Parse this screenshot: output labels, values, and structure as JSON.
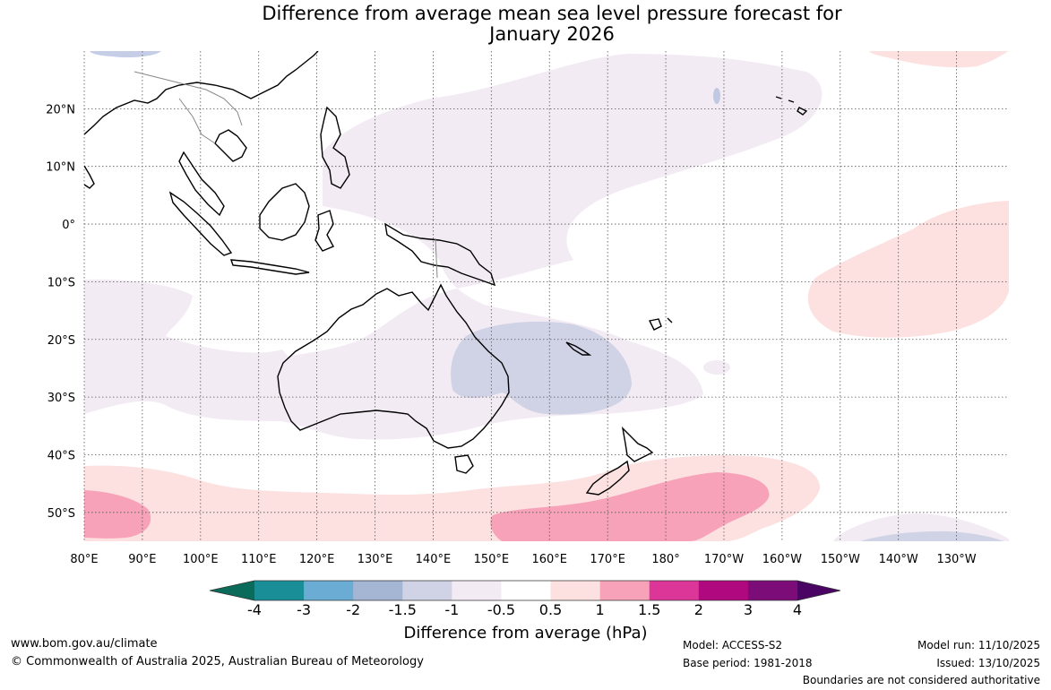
{
  "title": {
    "line1": "Difference from average mean sea level pressure forecast for",
    "line2": "January 2026"
  },
  "map": {
    "longitude_labels": [
      "80°E",
      "90°E",
      "100°E",
      "110°E",
      "120°E",
      "130°E",
      "140°E",
      "150°E",
      "160°E",
      "170°E",
      "180°",
      "170°W",
      "160°W",
      "150°W",
      "140°W",
      "130°W"
    ],
    "latitude_labels": [
      "20°N",
      "10°N",
      "0°",
      "10°S",
      "20°S",
      "30°S",
      "40°S",
      "50°S"
    ],
    "lon_range_deg_east": [
      80,
      239
    ],
    "lat_range": [
      -55,
      30
    ]
  },
  "legend": {
    "title": "Difference from average (hPa)",
    "tick_labels": [
      "-4",
      "-3",
      "-2",
      "-1.5",
      "-1",
      "-0.5",
      "0.5",
      "1",
      "1.5",
      "2",
      "3",
      "4"
    ],
    "colors": [
      "#0b6b5a",
      "#1a8e97",
      "#6aacd3",
      "#a5b6d4",
      "#d0d2e6",
      "#f3ebf4",
      "#ffffff",
      "#fde0e0",
      "#f7a2b9",
      "#dc3698",
      "#b0087e",
      "#7b0c78",
      "#4a0464"
    ]
  },
  "footer": {
    "website": "www.bom.gov.au/climate",
    "copyright": "© Commonwealth of Australia 2025, Australian Bureau of Meteorology",
    "model": "Model: ACCESS-S2",
    "base_period": "Base period: 1981-2018",
    "model_run": "Model run: 11/10/2025",
    "issued": "Issued: 13/10/2025",
    "disclaimer": "Boundaries are not considered authoritative"
  }
}
